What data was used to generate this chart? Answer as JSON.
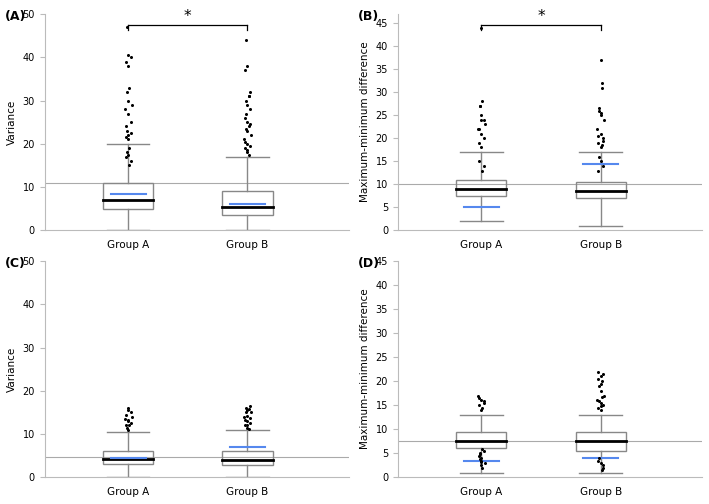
{
  "panels": [
    {
      "label": "(A)",
      "ylabel": "Variance",
      "ylim": [
        0,
        50
      ],
      "yticks": [
        0,
        10,
        20,
        30,
        40,
        50
      ],
      "hline": 11.0,
      "significance": true,
      "groupA": {
        "whisker_low": 0,
        "whisker_high": 20,
        "q1": 5.0,
        "median": 7.0,
        "q3": 11.0,
        "mean": 8.5,
        "outliers_x": [
          1.0,
          0.98,
          1.02,
          1.0,
          0.97,
          1.03,
          1.0,
          0.99,
          1.01,
          1.0,
          0.98,
          1.02,
          1.0,
          0.99,
          1.01,
          1.02,
          0.98,
          1.0,
          0.99,
          1.01,
          1.0,
          0.98,
          1.02,
          0.99
        ],
        "outliers_y": [
          22,
          24,
          25,
          27,
          28,
          29,
          30,
          32,
          33,
          38,
          39,
          40,
          40.5,
          47,
          15,
          16,
          17,
          17.5,
          18,
          19,
          21,
          21.5,
          22.5,
          23
        ]
      },
      "groupB": {
        "whisker_low": 0,
        "whisker_high": 17,
        "q1": 3.5,
        "median": 5.5,
        "q3": 9.0,
        "mean": 6.0,
        "outliers_x": [
          2.0,
          1.98,
          2.02,
          2.0,
          1.97,
          2.03,
          2.0,
          1.99,
          2.01,
          2.0,
          1.98,
          2.02,
          2.0,
          1.99,
          2.01,
          2.02,
          1.98,
          2.0,
          1.99,
          2.01,
          2.0,
          1.98,
          2.02,
          1.99,
          2.01
        ],
        "outliers_y": [
          18,
          19,
          19.5,
          20,
          21,
          22,
          23,
          23.5,
          24,
          25,
          26,
          28,
          29,
          30,
          31,
          32,
          37,
          38,
          44,
          17.5,
          18.5,
          20.5,
          24.5,
          27,
          31
        ]
      }
    },
    {
      "label": "(B)",
      "ylabel": "Maximum-minimum difference",
      "ylim": [
        0,
        47
      ],
      "yticks": [
        0,
        5,
        10,
        15,
        20,
        25,
        30,
        35,
        40,
        45
      ],
      "hline": 10.0,
      "significance": true,
      "groupA": {
        "whisker_low": 2,
        "whisker_high": 17,
        "q1": 7.5,
        "median": 9.0,
        "q3": 11.0,
        "mean": 5.0,
        "outliers_x": [
          1.0,
          0.98,
          1.02,
          1.0,
          0.97,
          1.03,
          1.0,
          0.99,
          1.01,
          1.0,
          0.98,
          1.02,
          1.0,
          0.99,
          1.01,
          1.02,
          0.98
        ],
        "outliers_y": [
          18,
          19,
          20,
          21,
          22,
          23,
          24,
          27,
          28,
          44,
          22,
          24,
          25,
          27,
          13,
          14,
          15
        ]
      },
      "groupB": {
        "whisker_low": 1,
        "whisker_high": 17,
        "q1": 7.0,
        "median": 8.5,
        "q3": 10.5,
        "mean": 14.5,
        "outliers_x": [
          2.0,
          1.98,
          2.02,
          2.0,
          1.97,
          2.03,
          2.0,
          1.99,
          2.01,
          2.0,
          1.98,
          2.02,
          2.0,
          1.99,
          2.01,
          2.02,
          1.98,
          2.0,
          1.99,
          2.01
        ],
        "outliers_y": [
          18,
          19,
          20,
          21,
          22,
          24,
          25,
          26,
          31,
          37,
          13,
          14,
          15,
          16,
          18.5,
          19.5,
          20.5,
          25.5,
          26.5,
          32
        ]
      }
    },
    {
      "label": "(C)",
      "ylabel": "Variance",
      "ylim": [
        0,
        50
      ],
      "yticks": [
        0,
        10,
        20,
        30,
        40,
        50
      ],
      "hline": 4.8,
      "significance": false,
      "groupA": {
        "whisker_low": 0,
        "whisker_high": 10.5,
        "q1": 3.0,
        "median": 4.2,
        "q3": 6.0,
        "mean": 4.5,
        "outliers_x": [
          1.0,
          0.98,
          1.02,
          1.0,
          0.97,
          1.03,
          1.0,
          0.99,
          1.01,
          1.0,
          0.98,
          1.02,
          1.0
        ],
        "outliers_y": [
          11,
          12,
          12.5,
          13,
          13.5,
          14,
          16,
          11.5,
          12.2,
          13.2,
          14.5,
          15,
          15.5
        ]
      },
      "groupB": {
        "whisker_low": 0,
        "whisker_high": 11.0,
        "q1": 2.8,
        "median": 4.0,
        "q3": 6.0,
        "mean": 7.0,
        "outliers_x": [
          2.0,
          1.98,
          2.02,
          2.0,
          1.97,
          2.03,
          2.0,
          1.99,
          2.01,
          2.0,
          1.98,
          2.02,
          2.0,
          1.99,
          2.01,
          2.02
        ],
        "outliers_y": [
          11.5,
          12,
          12.5,
          13,
          14,
          15,
          15.5,
          16,
          11.2,
          12.2,
          13.2,
          13.8,
          14.2,
          15.2,
          15.8,
          16.5
        ]
      }
    },
    {
      "label": "(D)",
      "ylabel": "Maximum-minimum difference",
      "ylim": [
        0,
        45
      ],
      "yticks": [
        0,
        5,
        10,
        15,
        20,
        25,
        30,
        35,
        40,
        45
      ],
      "hline": 7.5,
      "significance": false,
      "groupA": {
        "whisker_low": 1,
        "whisker_high": 13,
        "q1": 6.0,
        "median": 7.5,
        "q3": 9.5,
        "mean": 3.5,
        "outliers_x": [
          1.0,
          0.98,
          1.02,
          1.0,
          0.97,
          1.03,
          1.0,
          0.99,
          1.01,
          1.0,
          0.98,
          1.02,
          1.0,
          0.99,
          1.01,
          1.02,
          0.98,
          1.0,
          0.99,
          1.01
        ],
        "outliers_y": [
          14,
          15,
          15.5,
          16,
          17,
          3,
          4,
          5,
          2,
          3.5,
          4.5,
          5.5,
          2.5,
          3.8,
          14.5,
          15.8,
          16.5,
          3.2,
          4.8,
          5.8
        ]
      },
      "groupB": {
        "whisker_low": 1,
        "whisker_high": 13,
        "q1": 5.5,
        "median": 7.5,
        "q3": 9.5,
        "mean": 4.0,
        "outliers_x": [
          2.0,
          1.98,
          2.02,
          2.0,
          1.97,
          2.03,
          2.0,
          1.99,
          2.01,
          2.0,
          1.98,
          2.02,
          2.0,
          1.99,
          2.01,
          2.02,
          1.98,
          2.0,
          1.99,
          2.01,
          2.0,
          1.98,
          2.02
        ],
        "outliers_y": [
          14,
          14.5,
          15,
          15.5,
          16,
          17,
          18,
          19,
          20,
          21,
          22,
          2,
          3,
          4,
          1.5,
          2.5,
          3.5,
          14.8,
          15.8,
          16.8,
          19.5,
          20.5,
          21.5
        ]
      }
    }
  ],
  "box_color": "#888888",
  "median_color": "#000000",
  "whisker_color": "#888888",
  "outlier_color": "#000000",
  "mean_color": "#5588ee",
  "hline_color": "#aaaaaa",
  "bg_color": "#ffffff"
}
